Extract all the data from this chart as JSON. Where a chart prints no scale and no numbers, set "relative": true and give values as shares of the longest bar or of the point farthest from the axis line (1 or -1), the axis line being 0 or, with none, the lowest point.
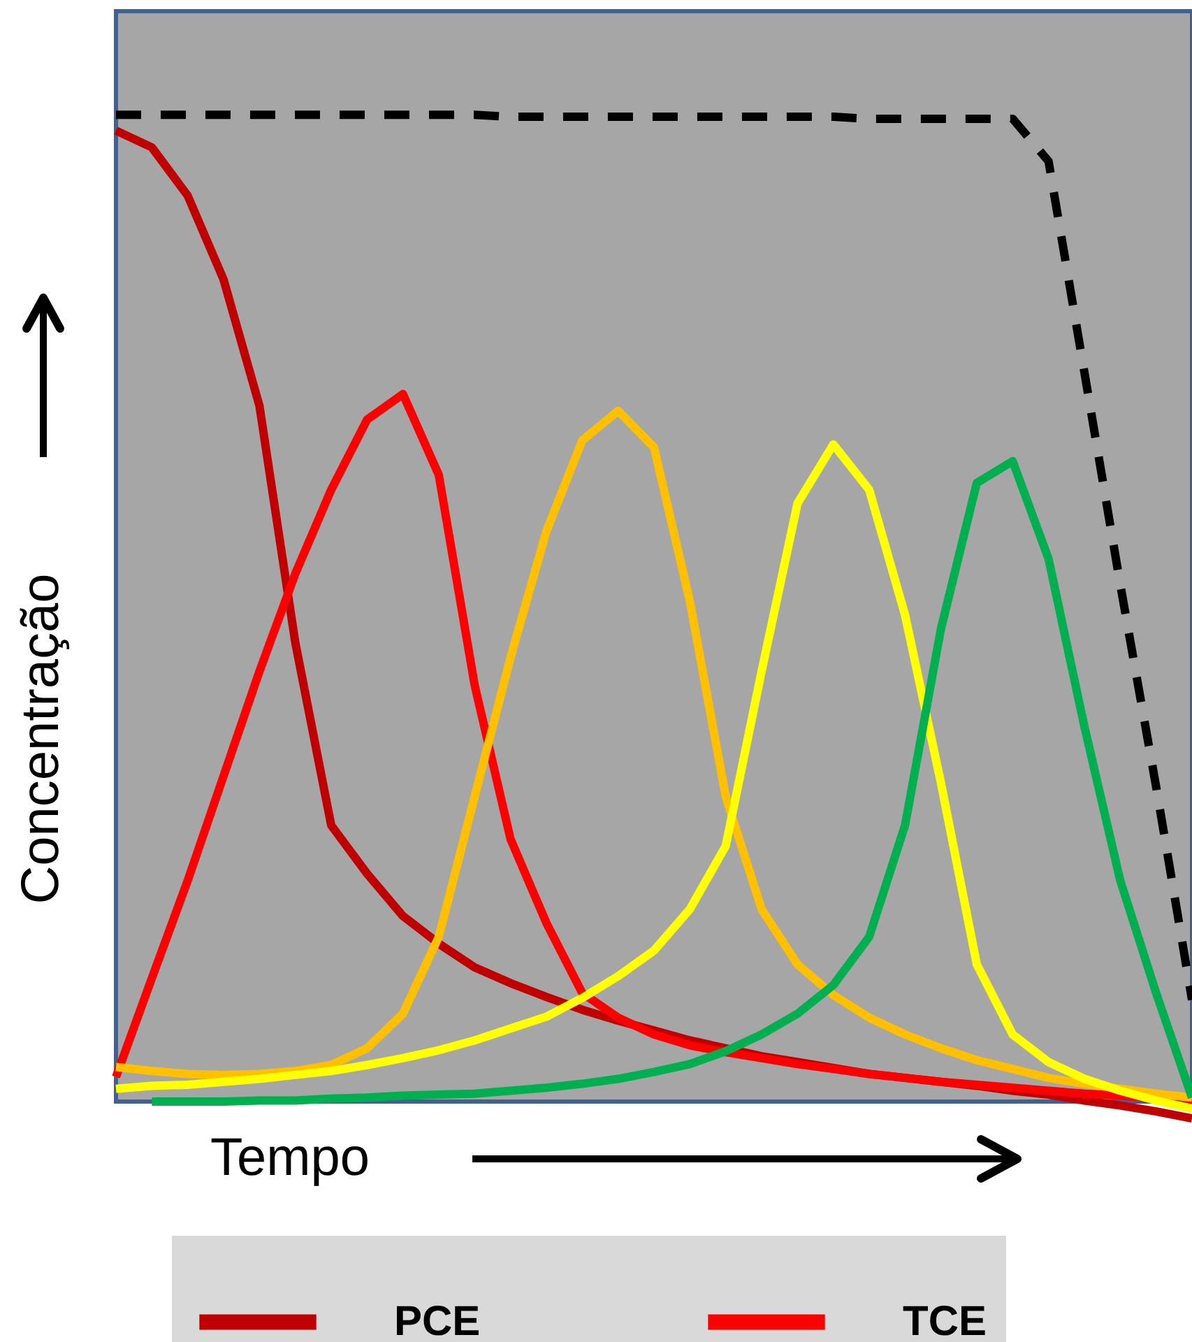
{
  "chart_data": {
    "type": "line",
    "relative": true,
    "xlabel": "Tempo",
    "ylabel": "Concentração",
    "categories": [
      null,
      null,
      null,
      null,
      null,
      null,
      null,
      null,
      null,
      null,
      null,
      null,
      null,
      null,
      null,
      null,
      null,
      null,
      null,
      null,
      null,
      null,
      null,
      null,
      null,
      null,
      null,
      null,
      null,
      null,
      null
    ],
    "grid": false,
    "legend": "bottom",
    "marker": "none",
    "series": [
      {
        "name": "PCE",
        "color": "#c00000",
        "values": [
          0.984,
          0.967,
          0.918,
          0.833,
          0.705,
          0.465,
          0.28,
          0.231,
          0.188,
          0.16,
          0.136,
          0.12,
          0.106,
          0.093,
          0.082,
          0.072,
          0.062,
          0.054,
          0.046,
          0.04,
          0.034,
          0.028,
          0.024,
          0.02,
          0.016,
          0.011,
          0.007,
          0.001,
          -0.004,
          -0.01,
          -0.017
        ]
      },
      {
        "name": "TCE",
        "color": "#ff0000",
        "values": [
          0.025,
          0.125,
          0.224,
          0.33,
          0.436,
          0.535,
          0.62,
          0.691,
          0.717,
          0.635,
          0.422,
          0.266,
          0.181,
          0.11,
          0.085,
          0.068,
          0.057,
          0.05,
          0.044,
          0.038,
          0.033,
          0.028,
          0.024,
          0.02,
          0.017,
          0.014,
          0.011,
          0.008,
          0.006,
          0.003,
          0
        ]
      },
      {
        "color": "#ffc000",
        "values": [
          0.035,
          0.031,
          0.028,
          0.027,
          0.028,
          0.031,
          0.037,
          0.054,
          0.089,
          0.167,
          0.309,
          0.45,
          0.578,
          0.67,
          0.7,
          0.663,
          0.507,
          0.309,
          0.195,
          0.139,
          0.108,
          0.085,
          0.068,
          0.054,
          0.042,
          0.033,
          0.024,
          0.018,
          0.013,
          0.008,
          0.004
        ]
      },
      {
        "color": "#ffff00",
        "values": [
          0.013,
          0.016,
          0.017,
          0.02,
          0.023,
          0.027,
          0.031,
          0.037,
          0.044,
          0.052,
          0.062,
          0.074,
          0.086,
          0.105,
          0.127,
          0.153,
          0.195,
          0.259,
          0.436,
          0.606,
          0.666,
          0.62,
          0.493,
          0.323,
          0.139,
          0.068,
          0.04,
          0.023,
          0.011,
          0.001,
          -0.007
        ]
      },
      {
        "color": "#00b050",
        "values": [
          null,
          0,
          0,
          0,
          0.001,
          0.001,
          0.003,
          0.004,
          0.006,
          0.007,
          0.008,
          0.011,
          0.014,
          0.018,
          0.023,
          0.03,
          0.038,
          0.051,
          0.068,
          0.089,
          0.118,
          0.167,
          0.28,
          0.479,
          0.627,
          0.649,
          0.55,
          0.38,
          0.224,
          0.11,
          0.004
        ]
      },
      {
        "color": "#000000",
        "line_style": "dashed",
        "values": [
          1,
          1,
          1,
          1,
          1,
          1,
          1,
          1,
          1,
          1,
          1,
          0.998,
          0.998,
          0.998,
          0.998,
          0.998,
          0.998,
          0.998,
          0.998,
          0.998,
          0.998,
          0.996,
          0.996,
          0.996,
          0.996,
          0.996,
          0.953,
          0.739,
          0.524,
          0.319,
          0.103
        ]
      }
    ]
  }
}
